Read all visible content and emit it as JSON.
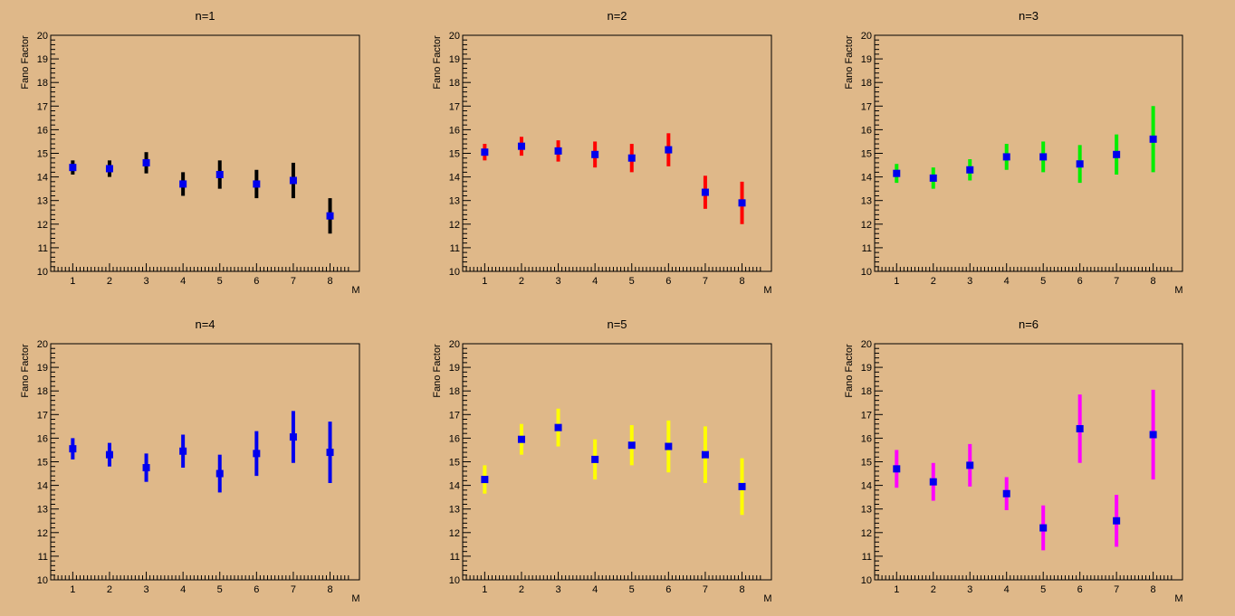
{
  "colors": {
    "background": "#dfb889",
    "marker": "#0000ee",
    "axis": "#000000"
  },
  "chart_data": [
    {
      "type": "scatter",
      "title": "n=1",
      "xlabel": "M",
      "ylabel": "Fano Factor",
      "xlim": [
        0.4,
        8.8
      ],
      "ylim": [
        10,
        20
      ],
      "xticks": [
        "1",
        "2",
        "3",
        "4",
        "5",
        "6",
        "7",
        "8"
      ],
      "yticks": [
        "10",
        "11",
        "12",
        "13",
        "14",
        "15",
        "16",
        "17",
        "18",
        "19",
        "20"
      ],
      "error_color": "#000000",
      "x": [
        1,
        2,
        3,
        4,
        5,
        6,
        7,
        8
      ],
      "y": [
        14.4,
        14.35,
        14.6,
        13.7,
        14.1,
        13.7,
        13.85,
        12.35
      ],
      "err": [
        0.3,
        0.35,
        0.45,
        0.5,
        0.6,
        0.6,
        0.75,
        0.75
      ]
    },
    {
      "type": "scatter",
      "title": "n=2",
      "xlabel": "M",
      "ylabel": "Fano Factor",
      "xlim": [
        0.4,
        8.8
      ],
      "ylim": [
        10,
        20
      ],
      "xticks": [
        "1",
        "2",
        "3",
        "4",
        "5",
        "6",
        "7",
        "8"
      ],
      "yticks": [
        "10",
        "11",
        "12",
        "13",
        "14",
        "15",
        "16",
        "17",
        "18",
        "19",
        "20"
      ],
      "error_color": "#ff0000",
      "x": [
        1,
        2,
        3,
        4,
        5,
        6,
        7,
        8
      ],
      "y": [
        15.05,
        15.3,
        15.1,
        14.95,
        14.8,
        15.15,
        13.35,
        12.9
      ],
      "err": [
        0.35,
        0.4,
        0.45,
        0.55,
        0.6,
        0.7,
        0.7,
        0.9
      ]
    },
    {
      "type": "scatter",
      "title": "n=3",
      "xlabel": "M",
      "ylabel": "Fano Factor",
      "xlim": [
        0.4,
        8.8
      ],
      "ylim": [
        10,
        20
      ],
      "xticks": [
        "1",
        "2",
        "3",
        "4",
        "5",
        "6",
        "7",
        "8"
      ],
      "yticks": [
        "10",
        "11",
        "12",
        "13",
        "14",
        "15",
        "16",
        "17",
        "18",
        "19",
        "20"
      ],
      "error_color": "#00ee00",
      "x": [
        1,
        2,
        3,
        4,
        5,
        6,
        7,
        8
      ],
      "y": [
        14.15,
        13.95,
        14.3,
        14.85,
        14.85,
        14.55,
        14.95,
        15.6
      ],
      "err": [
        0.4,
        0.45,
        0.45,
        0.55,
        0.65,
        0.8,
        0.85,
        1.4
      ]
    },
    {
      "type": "scatter",
      "title": "n=4",
      "xlabel": "M",
      "ylabel": "Fano Factor",
      "xlim": [
        0.4,
        8.8
      ],
      "ylim": [
        10,
        20
      ],
      "xticks": [
        "1",
        "2",
        "3",
        "4",
        "5",
        "6",
        "7",
        "8"
      ],
      "yticks": [
        "10",
        "11",
        "12",
        "13",
        "14",
        "15",
        "16",
        "17",
        "18",
        "19",
        "20"
      ],
      "error_color": "#0000ee",
      "x": [
        1,
        2,
        3,
        4,
        5,
        6,
        7,
        8
      ],
      "y": [
        15.55,
        15.3,
        14.75,
        15.45,
        14.5,
        15.35,
        16.05,
        15.4
      ],
      "err": [
        0.45,
        0.5,
        0.6,
        0.7,
        0.8,
        0.95,
        1.1,
        1.3
      ]
    },
    {
      "type": "scatter",
      "title": "n=5",
      "xlabel": "M",
      "ylabel": "Fano Factor",
      "xlim": [
        0.4,
        8.8
      ],
      "ylim": [
        10,
        20
      ],
      "xticks": [
        "1",
        "2",
        "3",
        "4",
        "5",
        "6",
        "7",
        "8"
      ],
      "yticks": [
        "10",
        "11",
        "12",
        "13",
        "14",
        "15",
        "16",
        "17",
        "18",
        "19",
        "20"
      ],
      "error_color": "#ffff00",
      "x": [
        1,
        2,
        3,
        4,
        5,
        6,
        7,
        8
      ],
      "y": [
        14.25,
        15.95,
        16.45,
        15.1,
        15.7,
        15.65,
        15.3,
        13.95
      ],
      "err": [
        0.6,
        0.65,
        0.8,
        0.85,
        0.85,
        1.1,
        1.2,
        1.2
      ]
    },
    {
      "type": "scatter",
      "title": "n=6",
      "xlabel": "M",
      "ylabel": "Fano Factor",
      "xlim": [
        0.4,
        8.8
      ],
      "ylim": [
        10,
        20
      ],
      "xticks": [
        "1",
        "2",
        "3",
        "4",
        "5",
        "6",
        "7",
        "8"
      ],
      "yticks": [
        "10",
        "11",
        "12",
        "13",
        "14",
        "15",
        "16",
        "17",
        "18",
        "19",
        "20"
      ],
      "error_color": "#ff00ff",
      "x": [
        1,
        2,
        3,
        4,
        5,
        6,
        7,
        8
      ],
      "y": [
        14.7,
        14.15,
        14.85,
        13.65,
        12.2,
        16.4,
        12.5,
        16.15
      ],
      "err": [
        0.8,
        0.8,
        0.9,
        0.7,
        0.95,
        1.45,
        1.1,
        1.9
      ]
    }
  ]
}
